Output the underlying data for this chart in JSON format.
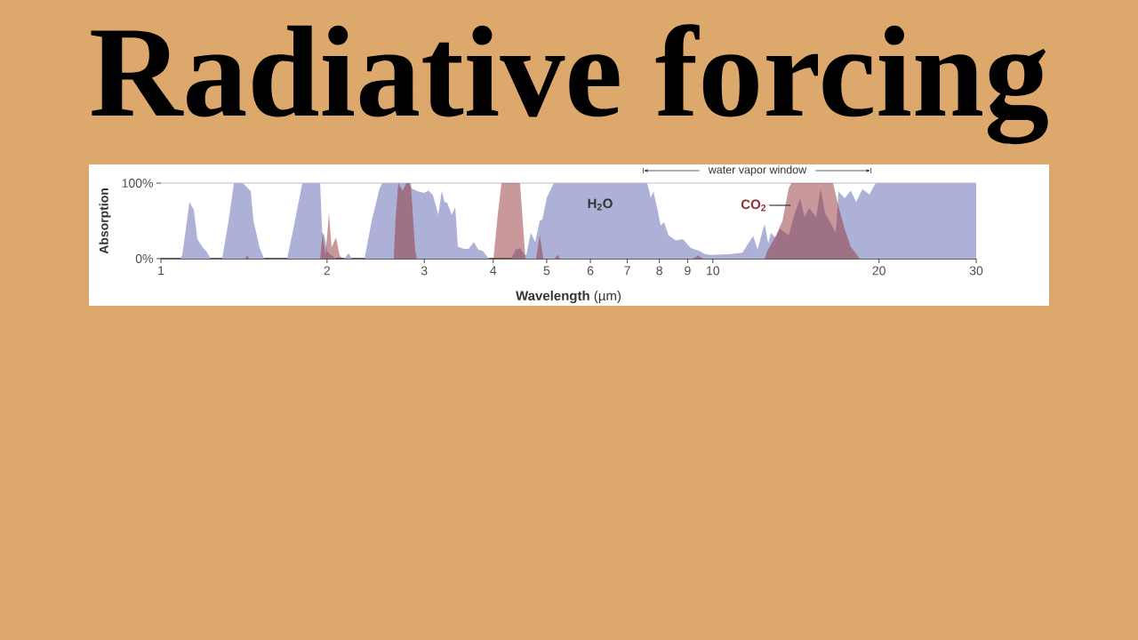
{
  "chart_data": {
    "type": "area",
    "title": "Radiative forcing",
    "xlabel": "**Wavelength** (µm)",
    "ylabel": "Absorption",
    "log": "x",
    "xlim": [
      1,
      30
    ],
    "ylim": [
      0,
      100
    ],
    "xticks": [
      1,
      2,
      3,
      4,
      5,
      6,
      7,
      8,
      9,
      10,
      20,
      30
    ],
    "yticks": [
      {
        "value": 0,
        "label": "0%"
      },
      {
        "value": 100,
        "label": "100%"
      }
    ],
    "grid": "y",
    "annotations": [
      "water vapor window"
    ],
    "series": [
      {
        "name": "H$_{2}$O",
        "color": "#adb1d7",
        "x": [
          1,
          1.085,
          1.093,
          1.11,
          1.126,
          1.14,
          1.147,
          1.164,
          1.19,
          1.208,
          1.231,
          1.291,
          1.326,
          1.356,
          1.406,
          1.43,
          1.455,
          1.471,
          1.51,
          1.538,
          1.693,
          1.738,
          1.804,
          1.943,
          1.96,
          1.979,
          2.001,
          2.03,
          2.08,
          2.15,
          2.187,
          2.22,
          2.338,
          2.409,
          2.49,
          2.518,
          2.814,
          2.847,
          2.921,
          2.998,
          3.054,
          3.111,
          3.181,
          3.228,
          3.265,
          3.302,
          3.364,
          3.414,
          3.452,
          3.542,
          3.609,
          3.69,
          3.759,
          3.83,
          3.929,
          4.312,
          4.392,
          4.474,
          4.558,
          4.592,
          4.678,
          4.766,
          4.856,
          4.911,
          5.003,
          5.095,
          5.152,
          7.606,
          7.72,
          7.806,
          7.951,
          8.04,
          8.16,
          8.314,
          8.564,
          8.822,
          9.122,
          9.468,
          9.679,
          9.934,
          10.7,
          11.31,
          11.83,
          12.05,
          12.41,
          12.6,
          12.74,
          12.98,
          13.22,
          13.72,
          14.03,
          14.39,
          14.66,
          14.94,
          15.39,
          15.68,
          15.97,
          16.27,
          16.7,
          16.89,
          17.33,
          17.78,
          18.18,
          18.66,
          19.22,
          19.73,
          30
        ],
        "values": [
          0,
          0,
          5,
          40,
          75,
          68,
          65,
          26,
          15,
          10,
          0,
          0,
          50,
          100,
          100,
          95,
          89,
          50,
          14,
          0,
          0,
          40,
          100,
          100,
          35,
          30,
          10,
          5,
          0,
          0,
          7,
          0,
          0,
          50,
          93,
          100,
          100,
          93,
          89,
          87,
          90,
          84,
          58,
          90,
          75,
          74,
          58,
          68,
          16,
          13,
          13,
          22,
          12,
          10,
          0,
          0,
          12,
          14,
          5,
          5,
          34,
          22,
          50,
          52,
          81,
          93,
          100,
          100,
          81,
          89,
          63,
          44,
          48,
          31,
          24,
          26,
          14,
          10,
          6,
          5,
          6,
          8,
          30,
          12,
          46,
          20,
          34,
          28,
          40,
          31,
          57,
          80,
          55,
          67,
          55,
          93,
          60,
          50,
          34,
          89,
          80,
          90,
          75,
          92,
          85,
          100,
          100
        ]
      },
      {
        "name": "CO$_{2}$",
        "color": "#913135",
        "x": [
          1.42,
          1.433,
          1.445,
          1.943,
          1.964,
          1.987,
          2.016,
          2.038,
          2.076,
          2.107,
          2.131,
          2.642,
          2.66,
          2.692,
          2.742,
          2.783,
          2.836,
          2.889,
          2.91,
          4.004,
          4.079,
          4.14,
          4.474,
          4.524,
          4.575,
          4.784,
          4.856,
          4.929,
          5.17,
          5.23,
          5.29,
          9.2,
          9.4,
          9.6,
          12.41,
          12.55,
          13.02,
          13.37,
          13.72,
          13.87,
          16.51,
          16.89,
          17.33,
          17.78,
          18.45
        ],
        "values": [
          0,
          4,
          0,
          0,
          34,
          5,
          60,
          15,
          28,
          5,
          0,
          0,
          50,
          100,
          90,
          100,
          100,
          10,
          0,
          0,
          60,
          100,
          100,
          50,
          0,
          0,
          31,
          0,
          0,
          5,
          0,
          0,
          4,
          0,
          0,
          10,
          31,
          50,
          93,
          100,
          100,
          69,
          39,
          16,
          0
        ]
      }
    ]
  }
}
